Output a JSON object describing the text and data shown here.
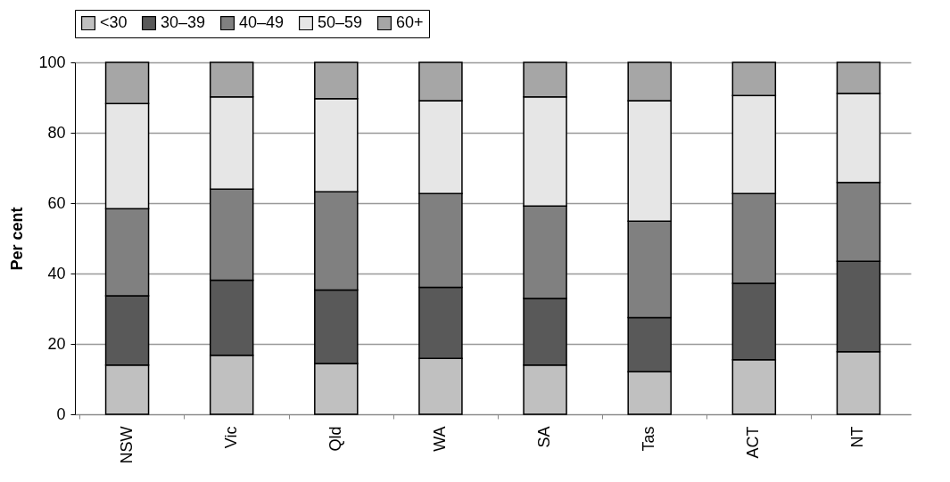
{
  "chart_data": {
    "type": "bar",
    "stacked": true,
    "ylabel": "Per cent",
    "categories": [
      "NSW",
      "Vic",
      "Qld",
      "WA",
      "SA",
      "Tas",
      "ACT",
      "NT"
    ],
    "series": [
      {
        "name": "<30",
        "color": "#c0c0c0",
        "values": [
          14.0,
          16.8,
          14.4,
          15.9,
          14.0,
          12.1,
          15.5,
          17.8
        ]
      },
      {
        "name": "30–39",
        "color": "#595959",
        "values": [
          19.7,
          21.3,
          20.9,
          20.2,
          18.9,
          15.4,
          21.7,
          25.7
        ]
      },
      {
        "name": "40–49",
        "color": "#808080",
        "values": [
          24.7,
          25.9,
          27.9,
          26.6,
          26.3,
          27.4,
          25.5,
          22.4
        ]
      },
      {
        "name": "50–59",
        "color": "#e6e6e6",
        "values": [
          29.9,
          26.2,
          26.5,
          26.4,
          31.0,
          34.2,
          27.9,
          25.3
        ]
      },
      {
        "name": "60+",
        "color": "#a6a6a6",
        "values": [
          11.7,
          9.8,
          10.3,
          10.9,
          9.8,
          10.9,
          9.4,
          8.8
        ]
      }
    ],
    "ylim": [
      0,
      100
    ],
    "yticks": [
      0,
      20,
      40,
      60,
      80,
      100
    ],
    "grid": "y",
    "legend": "top"
  }
}
